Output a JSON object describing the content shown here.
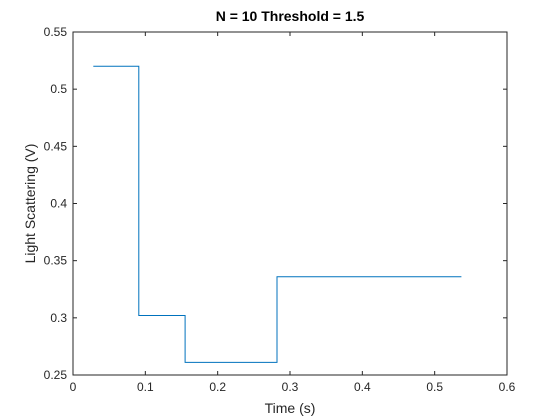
{
  "chart_data": {
    "type": "line",
    "title": "N = 10 Threshold = 1.5",
    "xlabel": "Time (s)",
    "ylabel": "Light Scattering (V)",
    "xlim": [
      0,
      0.6
    ],
    "ylim": [
      0.25,
      0.55
    ],
    "x_ticks": [
      "0",
      "0.1",
      "0.2",
      "0.3",
      "0.4",
      "0.5",
      "0.6"
    ],
    "y_ticks": [
      "0.25",
      "0.3",
      "0.35",
      "0.4",
      "0.45",
      "0.5",
      "0.55"
    ],
    "grid": false,
    "series": [
      {
        "color": "#0072bd",
        "x": [
          0.028,
          0.091,
          0.091,
          0.155,
          0.155,
          0.282,
          0.282,
          0.537
        ],
        "y": [
          0.52,
          0.52,
          0.302,
          0.302,
          0.261,
          0.261,
          0.336,
          0.336
        ]
      }
    ]
  }
}
